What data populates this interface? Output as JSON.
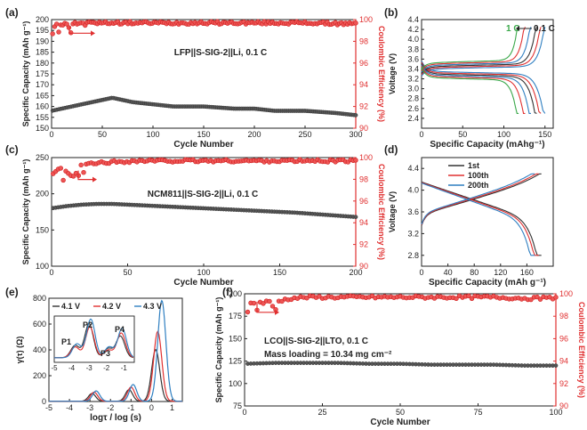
{
  "figure": {
    "colors": {
      "black": "#333333",
      "red": "#e03030",
      "green": "#3aa84a",
      "blue": "#2f7fc1",
      "gray": "#555555"
    }
  },
  "chart_data": [
    {
      "id": "a",
      "panel_label": "(a)",
      "type": "scatter",
      "xlabel": "Cycle Number",
      "ylabel": "Specific Capacity (mAh g⁻¹)",
      "y2label": "Coulombic Efficiency (%)",
      "xlim": [
        0,
        300
      ],
      "ylim": [
        150,
        200
      ],
      "y2lim": [
        90,
        100
      ],
      "xticks": [
        "0",
        "50",
        "100",
        "150",
        "200",
        "250",
        "300"
      ],
      "yticks": [
        "150",
        "155",
        "160",
        "165",
        "170",
        "175",
        "180",
        "185",
        "190",
        "195",
        "200"
      ],
      "y2ticks": [
        "90",
        "92",
        "94",
        "96",
        "98",
        "100"
      ],
      "annotation": "LFP||S-SIG-2||Li, 0.1 C",
      "series": [
        {
          "axis": "left",
          "color": "#444444",
          "x": [
            0,
            10,
            20,
            30,
            40,
            50,
            60,
            70,
            80,
            100,
            120,
            150,
            180,
            200,
            220,
            250,
            280,
            300
          ],
          "y": [
            158,
            159,
            160,
            161,
            162,
            163,
            164,
            163,
            162,
            161,
            160,
            160,
            159,
            159,
            158,
            158,
            157,
            156
          ]
        },
        {
          "axis": "right",
          "color": "#e03030",
          "x": [
            0,
            10,
            20,
            30,
            50,
            100,
            150,
            200,
            250,
            300
          ],
          "y": [
            99.5,
            99.6,
            99.7,
            99.7,
            99.7,
            99.7,
            99.7,
            99.7,
            99.7,
            99.6
          ]
        }
      ]
    },
    {
      "id": "b",
      "panel_label": "(b)",
      "type": "line",
      "xlabel": "Specific Capacity (mAhg⁻¹)",
      "ylabel": "Voltage (V)",
      "xlim": [
        0,
        160
      ],
      "ylim": [
        2.2,
        4.4
      ],
      "xticks": [
        "0",
        "50",
        "100",
        "150"
      ],
      "yticks": [
        "2.4",
        "2.6",
        "2.8",
        "3.0",
        "3.2",
        "3.4",
        "3.6",
        "3.8",
        "4.0",
        "4.2",
        "4.4"
      ],
      "annotation_left": "1 C",
      "annotation_right": "0.1 C",
      "series": [
        {
          "color": "#2f7fc1",
          "capacity": 150
        },
        {
          "color": "#e03030",
          "capacity": 145
        },
        {
          "color": "#333333",
          "capacity": 140
        },
        {
          "color": "#2f7fc1",
          "capacity": 133
        },
        {
          "color": "#e03030",
          "capacity": 126
        },
        {
          "color": "#3aa84a",
          "capacity": 118
        }
      ]
    },
    {
      "id": "c",
      "panel_label": "(c)",
      "type": "scatter",
      "xlabel": "Cycle Number",
      "ylabel": "Specific Capacity (mAh g⁻¹)",
      "y2label": "Coulombic Efficiency (%)",
      "xlim": [
        0,
        200
      ],
      "ylim": [
        100,
        250
      ],
      "y2lim": [
        90,
        100
      ],
      "xticks": [
        "0",
        "50",
        "100",
        "150",
        "200"
      ],
      "yticks": [
        "100",
        "150",
        "200",
        "250"
      ],
      "y2ticks": [
        "90",
        "92",
        "94",
        "96",
        "98",
        "100"
      ],
      "annotation": "NCM811||S-SIG-2||Li, 0.1 C",
      "series": [
        {
          "axis": "left",
          "color": "#444444",
          "x": [
            0,
            10,
            20,
            30,
            40,
            60,
            80,
            100,
            120,
            140,
            160,
            180,
            200
          ],
          "y": [
            180,
            183,
            185,
            186,
            186,
            184,
            182,
            180,
            178,
            176,
            174,
            171,
            168
          ]
        },
        {
          "axis": "right",
          "color": "#e03030",
          "x": [
            0,
            5,
            10,
            20,
            30,
            40,
            60,
            80,
            100,
            150,
            200
          ],
          "y": [
            98.5,
            99.0,
            98.8,
            99.3,
            99.5,
            99.6,
            99.7,
            99.7,
            99.7,
            99.7,
            99.7
          ]
        }
      ]
    },
    {
      "id": "d",
      "panel_label": "(d)",
      "type": "line",
      "xlabel": "Specific Capacity (mAh g⁻¹)",
      "ylabel": "Voltage (V)",
      "xlim": [
        0,
        200
      ],
      "ylim": [
        2.6,
        4.6
      ],
      "xticks": [
        "0",
        "40",
        "80",
        "120",
        "160"
      ],
      "yticks": [
        "2.8",
        "3.2",
        "3.6",
        "4.0",
        "4.4"
      ],
      "legend": [
        "1st",
        "100th",
        "200th"
      ],
      "series": [
        {
          "name": "1st",
          "color": "#333333",
          "capacity": 182
        },
        {
          "name": "100th",
          "color": "#e03030",
          "capacity": 178
        },
        {
          "name": "200th",
          "color": "#2f7fc1",
          "capacity": 172
        }
      ]
    },
    {
      "id": "e",
      "panel_label": "(e)",
      "type": "line",
      "xlabel": "logτ / log (s)",
      "ylabel": "γ(τ) (Ω)",
      "xlim": [
        -5,
        1.5
      ],
      "ylim": [
        0,
        800
      ],
      "xticks": [
        "-5",
        "-4",
        "-3",
        "-2",
        "-1",
        "0",
        "1"
      ],
      "yticks": [
        "0",
        "200",
        "400",
        "600",
        "800"
      ],
      "legend": [
        "4.1 V",
        "4.2 V",
        "4.3 V"
      ],
      "series": [
        {
          "name": "4.1 V",
          "color": "#333333",
          "peaks": [
            [
              -2.9,
              60
            ],
            [
              -1.1,
              90
            ],
            [
              0.2,
              400
            ]
          ]
        },
        {
          "name": "4.2 V",
          "color": "#e03030",
          "peaks": [
            [
              -2.8,
              70
            ],
            [
              -1.0,
              110
            ],
            [
              0.3,
              540
            ]
          ]
        },
        {
          "name": "4.3 V",
          "color": "#2f7fc1",
          "peaks": [
            [
              -2.7,
              80
            ],
            [
              -0.9,
              130
            ],
            [
              0.5,
              780
            ]
          ]
        }
      ],
      "inset": {
        "xticks": [
          "-5",
          "-4",
          "-3",
          "-2",
          "-1"
        ],
        "peak_labels": [
          "P1",
          "P2",
          "P3",
          "P4"
        ]
      }
    },
    {
      "id": "f",
      "panel_label": "(f)",
      "type": "scatter",
      "xlabel": "Cycle Number",
      "ylabel": "Specific Capacity (mAh g⁻¹)",
      "y2label": "Coulombic Efficiency (%)",
      "xlim": [
        0,
        100
      ],
      "ylim": [
        75,
        200
      ],
      "y2lim": [
        90,
        100
      ],
      "xticks": [
        "0",
        "25",
        "50",
        "75",
        "100"
      ],
      "yticks": [
        "75",
        "100",
        "125",
        "150",
        "175",
        "200"
      ],
      "y2ticks": [
        "90",
        "92",
        "94",
        "96",
        "98",
        "100"
      ],
      "annotation": "LCO||S-SIG-2||LTO, 0.1 C",
      "annotation2": "Mass loading = 10.34 mg cm⁻²",
      "series": [
        {
          "axis": "left",
          "color": "#444444",
          "x": [
            0,
            10,
            20,
            30,
            40,
            50,
            60,
            70,
            80,
            90,
            100
          ],
          "y": [
            122,
            123,
            123,
            123,
            122,
            122,
            121,
            121,
            121,
            120,
            120
          ]
        },
        {
          "axis": "right",
          "color": "#e03030",
          "x": [
            0,
            5,
            10,
            15,
            20,
            30,
            40,
            50,
            60,
            70,
            80,
            90,
            100
          ],
          "y": [
            99.1,
            99.2,
            99.3,
            99.6,
            99.7,
            99.7,
            99.7,
            99.7,
            99.7,
            99.7,
            99.7,
            99.6,
            99.6
          ]
        }
      ]
    }
  ]
}
